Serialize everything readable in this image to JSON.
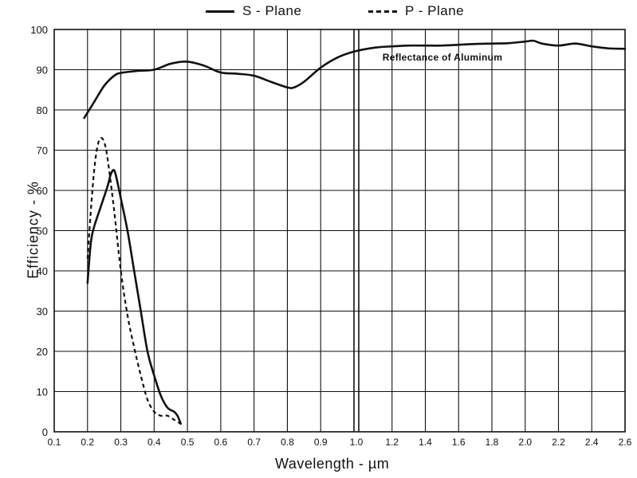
{
  "chart_data": {
    "type": "line",
    "title": "",
    "xlabel": "Wavelength - µm",
    "ylabel": "Efficiency - %",
    "ylim": [
      0,
      100
    ],
    "x_axis_note": "Axis scale changes at 1.0 µm (double vertical line); left segment 0.1–1.0 step 0.1, right segment 1.0–2.6 step 0.2",
    "x_ticks": [
      "0.1",
      "0.2",
      "0.3",
      "0.4",
      "0.5",
      "0.6",
      "0.7",
      "0.8",
      "0.9",
      "1.0",
      "1.2",
      "1.4",
      "1.6",
      "1.8",
      "2.0",
      "2.2",
      "2.4",
      "2.6"
    ],
    "y_ticks": [
      "0",
      "10",
      "20",
      "30",
      "40",
      "50",
      "60",
      "70",
      "80",
      "90",
      "100"
    ],
    "grid": true,
    "legend_position": "top-center",
    "legend": [
      {
        "name": "S - Plane",
        "style": "solid"
      },
      {
        "name": "P - Plane",
        "style": "dashed"
      }
    ],
    "annotation": "Reflectance of Aluminum",
    "series": [
      {
        "name": "S - Plane",
        "style": "solid",
        "x": [
          0.2,
          0.21,
          0.22,
          0.24,
          0.26,
          0.27,
          0.28,
          0.29,
          0.3,
          0.32,
          0.34,
          0.36,
          0.38,
          0.4,
          0.42,
          0.44,
          0.46,
          0.47,
          0.48
        ],
        "y": [
          37,
          47,
          51,
          56,
          61,
          64,
          65,
          62,
          58,
          50,
          40,
          30,
          20,
          14,
          9,
          6,
          5,
          4,
          2
        ]
      },
      {
        "name": "P - Plane",
        "style": "dashed",
        "x": [
          0.2,
          0.21,
          0.22,
          0.23,
          0.24,
          0.25,
          0.26,
          0.28,
          0.3,
          0.32,
          0.34,
          0.36,
          0.38,
          0.4,
          0.42,
          0.44,
          0.46,
          0.48
        ],
        "y": [
          43,
          55,
          65,
          71,
          73,
          72,
          68,
          55,
          40,
          29,
          21,
          14,
          8,
          5,
          4,
          4,
          3,
          2
        ]
      },
      {
        "name": "Reflectance of Aluminum",
        "style": "solid",
        "x": [
          0.19,
          0.22,
          0.25,
          0.28,
          0.3,
          0.35,
          0.4,
          0.45,
          0.5,
          0.55,
          0.6,
          0.65,
          0.7,
          0.75,
          0.8,
          0.82,
          0.85,
          0.9,
          0.95,
          1.0,
          1.1,
          1.2,
          1.3,
          1.4,
          1.5,
          1.6,
          1.7,
          1.8,
          1.9,
          2.0,
          2.05,
          2.1,
          2.2,
          2.3,
          2.4,
          2.5,
          2.6
        ],
        "y": [
          78,
          82,
          86,
          88.5,
          89.2,
          89.7,
          90,
          91.5,
          92,
          91,
          89.3,
          89,
          88.5,
          87,
          85.6,
          85.6,
          87,
          90.5,
          93,
          94.5,
          95.5,
          95.8,
          96,
          96,
          96,
          96.2,
          96.4,
          96.5,
          96.6,
          97,
          97.2,
          96.5,
          96,
          96.5,
          95.8,
          95.3,
          95.2
        ]
      }
    ]
  }
}
